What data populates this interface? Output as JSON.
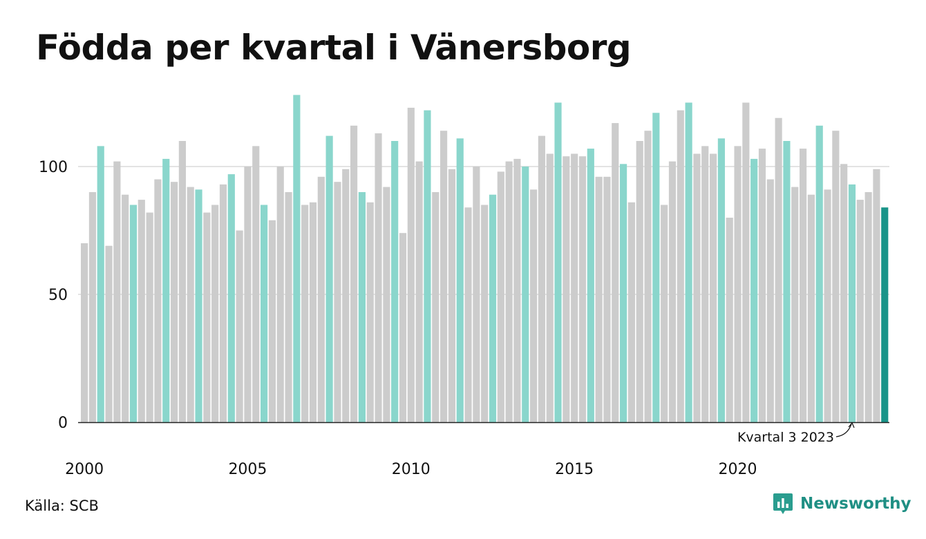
{
  "title": "Födda per kvartal i Vänersborg",
  "source": "Källa: SCB",
  "brand": {
    "name": "Newsworthy"
  },
  "colors": {
    "q3": "#8ad6cc",
    "other": "#cccccc",
    "latest": "#1a9489",
    "axis": "#222222",
    "grid": "#e3e3e3"
  },
  "annotation": {
    "text": "Kvartal 3 2023"
  },
  "chart_data": {
    "type": "bar",
    "title": "Födda per kvartal i Vänersborg",
    "xlabel": "",
    "ylabel": "",
    "ylim": [
      0,
      130
    ],
    "yticks": [
      0,
      50,
      100
    ],
    "grid": true,
    "xticks": [
      "2000",
      "2005",
      "2010",
      "2015",
      "2020"
    ],
    "start_year": 2000,
    "highlight": "Kvartal 3 (each year), latest = Kvartal 3 2023",
    "values": [
      70,
      90,
      108,
      69,
      102,
      89,
      85,
      87,
      82,
      95,
      103,
      94,
      110,
      92,
      91,
      82,
      85,
      93,
      97,
      75,
      100,
      108,
      85,
      79,
      100,
      90,
      128,
      85,
      86,
      96,
      112,
      94,
      99,
      116,
      90,
      86,
      113,
      92,
      110,
      74,
      123,
      102,
      122,
      90,
      114,
      99,
      111,
      84,
      100,
      85,
      89,
      98,
      102,
      103,
      100,
      91,
      112,
      105,
      125,
      104,
      105,
      104,
      107,
      96,
      96,
      117,
      101,
      86,
      110,
      114,
      121,
      85,
      102,
      122,
      125,
      105,
      108,
      105,
      111,
      80,
      108,
      125,
      103,
      107,
      95,
      119,
      110,
      92,
      107,
      89,
      116,
      91,
      114,
      101,
      93,
      87,
      90,
      99,
      84
    ]
  }
}
